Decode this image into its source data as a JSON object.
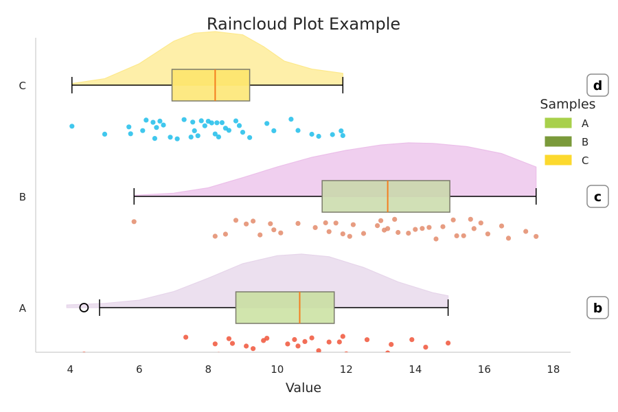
{
  "chart_data": {
    "type": "raincloud",
    "title": "Raincloud Plot Example",
    "xlabel": "Value",
    "ylabel": "",
    "xlim": [
      3,
      18.5
    ],
    "xticks": [
      4,
      6,
      8,
      10,
      12,
      14,
      16,
      18
    ],
    "categories": [
      "A",
      "B",
      "C"
    ],
    "grid": false,
    "legend": {
      "title": "Samples",
      "placement": "right",
      "entries": [
        {
          "label": "A",
          "color": "#a8d04b"
        },
        {
          "label": "B",
          "color": "#7a9a3a"
        },
        {
          "label": "C",
          "color": "#fcd92e"
        }
      ]
    },
    "panel_labels": [
      {
        "category": "C",
        "label": "d"
      },
      {
        "category": "B",
        "label": "c"
      },
      {
        "category": "A",
        "label": "b"
      }
    ],
    "series": [
      {
        "name": "A",
        "cloud_color": "#e6d5ea",
        "box_color": "#c6df98",
        "rain_color": "#f0553a",
        "box": {
          "whisker_low": 4.85,
          "q1": 8.8,
          "median": 10.65,
          "q3": 11.65,
          "whisker_high": 14.95
        },
        "outliers": [
          4.4
        ],
        "density": [
          [
            3.9,
            0.05
          ],
          [
            5,
            0.08
          ],
          [
            6,
            0.14
          ],
          [
            7,
            0.3
          ],
          [
            8,
            0.55
          ],
          [
            9,
            0.82
          ],
          [
            10,
            0.97
          ],
          [
            10.7,
            1.0
          ],
          [
            11.5,
            0.95
          ],
          [
            12.5,
            0.75
          ],
          [
            13.5,
            0.48
          ],
          [
            14.5,
            0.28
          ],
          [
            14.95,
            0.22
          ]
        ],
        "points": [
          4.4,
          4.85,
          7.35,
          8.2,
          8.3,
          8.6,
          8.7,
          9.1,
          9.3,
          9.6,
          9.7,
          10.1,
          10.3,
          10.5,
          10.6,
          10.8,
          11,
          11.2,
          11.5,
          11.8,
          11.9,
          12,
          12.6,
          13.2,
          13.3,
          13.9,
          14.3,
          14.95
        ]
      },
      {
        "name": "B",
        "cloud_color": "#ebbfe9",
        "box_color": "#c6d8a4",
        "rain_color": "#e38b6b",
        "box": {
          "whisker_low": 5.85,
          "q1": 11.3,
          "median": 13.2,
          "q3": 15.0,
          "whisker_high": 17.5
        },
        "outliers": [],
        "density": [
          [
            5.85,
            0.02
          ],
          [
            7,
            0.06
          ],
          [
            8,
            0.16
          ],
          [
            9,
            0.35
          ],
          [
            10,
            0.55
          ],
          [
            11,
            0.73
          ],
          [
            12,
            0.86
          ],
          [
            13,
            0.96
          ],
          [
            13.8,
            1.0
          ],
          [
            14.5,
            0.99
          ],
          [
            15.5,
            0.93
          ],
          [
            16.5,
            0.8
          ],
          [
            17.5,
            0.55
          ]
        ],
        "points": [
          5.85,
          8.2,
          8.5,
          8.8,
          9.1,
          9.3,
          9.5,
          9.8,
          9.9,
          10.1,
          10.6,
          11.1,
          11.4,
          11.5,
          11.7,
          11.9,
          12.1,
          12.2,
          12.5,
          12.9,
          13,
          13.1,
          13.2,
          13.4,
          13.5,
          13.8,
          14,
          14.2,
          14.4,
          14.6,
          14.8,
          15.1,
          15.2,
          15.4,
          15.6,
          15.7,
          15.9,
          16.1,
          16.5,
          16.7,
          17.2,
          17.5
        ]
      },
      {
        "name": "C",
        "cloud_color": "#fde98c",
        "box_color": "#fde464",
        "rain_color": "#1fbdea",
        "box": {
          "whisker_low": 4.05,
          "q1": 6.95,
          "median": 8.2,
          "q3": 9.2,
          "whisker_high": 11.9
        },
        "outliers": [],
        "density": [
          [
            4.05,
            0.03
          ],
          [
            5,
            0.12
          ],
          [
            6,
            0.4
          ],
          [
            7,
            0.82
          ],
          [
            7.6,
            0.97
          ],
          [
            8.2,
            1.0
          ],
          [
            9,
            0.94
          ],
          [
            9.6,
            0.72
          ],
          [
            10.2,
            0.45
          ],
          [
            11,
            0.3
          ],
          [
            11.9,
            0.22
          ]
        ],
        "points": [
          4.05,
          5,
          5.7,
          5.75,
          6.1,
          6.2,
          6.4,
          6.45,
          6.5,
          6.6,
          6.7,
          6.9,
          7.1,
          7.3,
          7.5,
          7.55,
          7.6,
          7.7,
          7.8,
          7.9,
          8,
          8.1,
          8.2,
          8.25,
          8.3,
          8.4,
          8.5,
          8.6,
          8.8,
          8.9,
          9,
          9.2,
          9.7,
          9.9,
          10.4,
          10.6,
          11,
          11.2,
          11.6,
          11.85,
          11.9
        ]
      }
    ]
  }
}
